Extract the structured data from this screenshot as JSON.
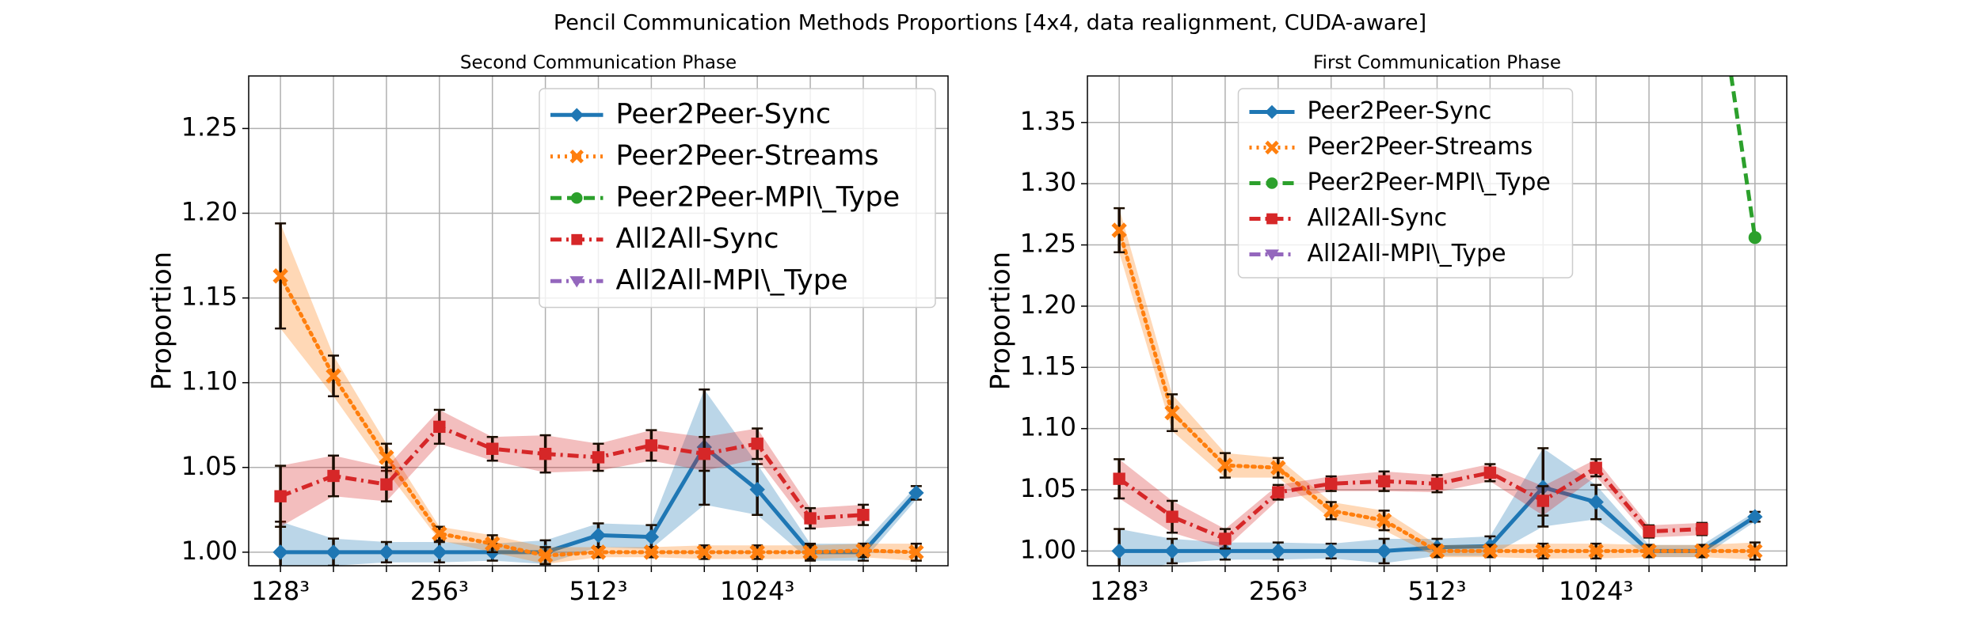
{
  "title": "Pencil Communication Methods Proportions [4x4, data realignment, CUDA-aware]",
  "chart_data": [
    {
      "type": "line",
      "title": "Second Communication Phase",
      "ylabel": "Proportion",
      "categories": [
        "128³",
        null,
        null,
        "256³",
        null,
        null,
        "512³",
        null,
        null,
        "1024³",
        null,
        null,
        null
      ],
      "ylim": [
        0.992,
        1.281
      ],
      "yticks": [
        {
          "value": 1.0,
          "label": "1.00"
        },
        {
          "value": 1.05,
          "label": "1.05"
        },
        {
          "value": 1.1,
          "label": "1.10"
        },
        {
          "value": 1.15,
          "label": "1.15"
        },
        {
          "value": 1.2,
          "label": "1.20"
        },
        {
          "value": 1.25,
          "label": "1.25"
        }
      ],
      "grid": true,
      "legend": "upper right",
      "series": [
        {
          "name": "Peer2Peer-Sync",
          "color": "#1f77b4",
          "marker": "diamond",
          "linestyle": "solid",
          "values": [
            1.0,
            1.0,
            1.0,
            1.0,
            1.0,
            1.0,
            1.01,
            1.009,
            1.062,
            1.037,
            1.0,
            1.0,
            1.035
          ],
          "errors": [
            0.018,
            0.008,
            0.006,
            0.006,
            0.005,
            0.007,
            0.007,
            0.007,
            0.034,
            0.015,
            0.005,
            0.005,
            0.004
          ]
        },
        {
          "name": "Peer2Peer-Streams",
          "color": "#ff7f0e",
          "marker": "x",
          "linestyle": "dotted",
          "values": [
            1.163,
            1.104,
            1.056,
            1.011,
            1.005,
            0.998,
            1.0,
            1.0,
            1.0,
            1.0,
            1.0,
            1.001,
            1.0
          ],
          "errors": [
            0.031,
            0.012,
            0.008,
            0.004,
            0.005,
            0.005,
            0.003,
            0.003,
            0.004,
            0.004,
            0.004,
            0.004,
            0.005
          ]
        },
        {
          "name": "Peer2Peer-MPI\\_Type",
          "color": "#2ca02c",
          "marker": "circle",
          "linestyle": "dashed",
          "values": [
            null,
            null,
            null,
            null,
            null,
            null,
            null,
            null,
            null,
            null,
            null,
            null,
            null
          ],
          "errors": [
            null,
            null,
            null,
            null,
            null,
            null,
            null,
            null,
            null,
            null,
            null,
            null,
            null
          ]
        },
        {
          "name": "All2All-Sync",
          "color": "#d62728",
          "marker": "square",
          "linestyle": "dashdot",
          "values": [
            1.033,
            1.045,
            1.04,
            1.074,
            1.061,
            1.058,
            1.056,
            1.063,
            1.058,
            1.064,
            1.02,
            1.022,
            null
          ],
          "errors": [
            0.018,
            0.012,
            0.01,
            0.01,
            0.007,
            0.011,
            0.008,
            0.009,
            0.01,
            0.009,
            0.006,
            0.006,
            null
          ]
        },
        {
          "name": "All2All-MPI\\_Type",
          "color": "#9467bd",
          "marker": "triangle",
          "linestyle": "dashdot",
          "values": [
            null,
            null,
            null,
            null,
            null,
            null,
            null,
            null,
            null,
            null,
            null,
            null,
            null
          ],
          "errors": [
            null,
            null,
            null,
            null,
            null,
            null,
            null,
            null,
            null,
            null,
            null,
            null,
            null
          ]
        }
      ]
    },
    {
      "type": "line",
      "title": "First Communication Phase",
      "ylabel": "Proportion",
      "categories": [
        "128³",
        null,
        null,
        "256³",
        null,
        null,
        "512³",
        null,
        null,
        "1024³",
        null,
        null,
        null
      ],
      "ylim": [
        0.988,
        1.388
      ],
      "yticks": [
        {
          "value": 1.0,
          "label": "1.00"
        },
        {
          "value": 1.05,
          "label": "1.05"
        },
        {
          "value": 1.1,
          "label": "1.10"
        },
        {
          "value": 1.15,
          "label": "1.15"
        },
        {
          "value": 1.2,
          "label": "1.20"
        },
        {
          "value": 1.25,
          "label": "1.25"
        },
        {
          "value": 1.3,
          "label": "1.30"
        },
        {
          "value": 1.35,
          "label": "1.35"
        }
      ],
      "grid": true,
      "legend": "upper center",
      "series": [
        {
          "name": "Peer2Peer-Sync",
          "color": "#1f77b4",
          "marker": "diamond",
          "linestyle": "solid",
          "values": [
            1.0,
            1.0,
            1.0,
            1.0,
            1.0,
            1.0,
            1.003,
            1.004,
            1.052,
            1.04,
            1.0,
            1.0,
            1.028
          ],
          "errors": [
            0.018,
            0.01,
            0.007,
            0.007,
            0.006,
            0.01,
            0.007,
            0.008,
            0.032,
            0.014,
            0.005,
            0.005,
            0.004
          ]
        },
        {
          "name": "Peer2Peer-Streams",
          "color": "#ff7f0e",
          "marker": "x",
          "linestyle": "dotted",
          "values": [
            1.262,
            1.113,
            1.07,
            1.068,
            1.033,
            1.025,
            1.0,
            1.0,
            1.0,
            1.0,
            1.0,
            1.0,
            1.0
          ],
          "errors": [
            0.018,
            0.015,
            0.01,
            0.008,
            0.007,
            0.008,
            0.005,
            0.005,
            0.006,
            0.006,
            0.005,
            0.005,
            0.007
          ]
        },
        {
          "name": "Peer2Peer-MPI\\_Type",
          "color": "#2ca02c",
          "marker": "circle",
          "linestyle": "dashed",
          "values": [
            null,
            null,
            null,
            null,
            null,
            null,
            null,
            null,
            null,
            null,
            null,
            1.55,
            1.256
          ],
          "errors": [
            null,
            null,
            null,
            null,
            null,
            null,
            null,
            null,
            null,
            null,
            null,
            null,
            null
          ]
        },
        {
          "name": "All2All-Sync",
          "color": "#d62728",
          "marker": "square",
          "linestyle": "dashdot",
          "values": [
            1.059,
            1.028,
            1.01,
            1.048,
            1.055,
            1.057,
            1.055,
            1.064,
            1.041,
            1.068,
            1.016,
            1.018,
            null
          ],
          "errors": [
            0.016,
            0.013,
            0.008,
            0.006,
            0.006,
            0.008,
            0.007,
            0.007,
            0.012,
            0.007,
            0.005,
            0.005,
            null
          ]
        },
        {
          "name": "All2All-MPI\\_Type",
          "color": "#9467bd",
          "marker": "triangle",
          "linestyle": "dashdot",
          "values": [
            null,
            null,
            null,
            null,
            null,
            null,
            null,
            null,
            null,
            null,
            null,
            null,
            null
          ],
          "errors": [
            null,
            null,
            null,
            null,
            null,
            null,
            null,
            null,
            null,
            null,
            null,
            null,
            null
          ]
        }
      ]
    }
  ]
}
